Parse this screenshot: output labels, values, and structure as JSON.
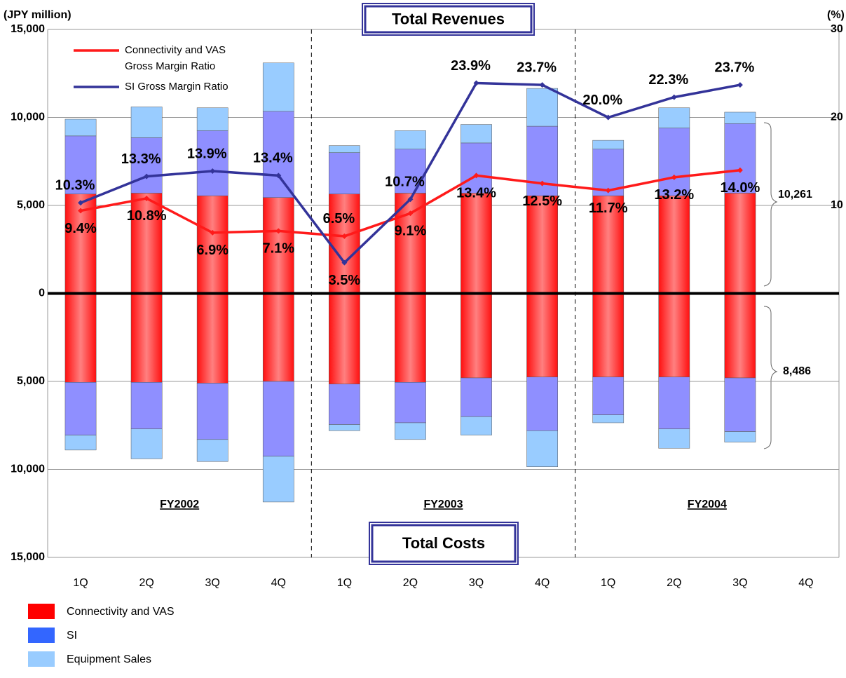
{
  "chart_data": {
    "type": "bar",
    "title": "Total Revenues",
    "cost_title": "Total Costs",
    "y_axis_label": "(JPY million)",
    "y2_axis_label": "(%)",
    "categories": [
      "1Q",
      "2Q",
      "3Q",
      "4Q",
      "1Q",
      "2Q",
      "3Q",
      "4Q",
      "1Q",
      "2Q",
      "3Q",
      "4Q"
    ],
    "groups": [
      "FY2002",
      "FY2003",
      "FY2004"
    ],
    "ylim": [
      -15000,
      15000
    ],
    "yticks": [
      {
        "value": -15000,
        "label": "15,000"
      },
      {
        "value": -10000,
        "label": "10,000"
      },
      {
        "value": -5000,
        "label": "5,000"
      },
      0,
      {
        "value": 5000,
        "label": "5,000"
      },
      {
        "value": 10000,
        "label": "10,000"
      },
      {
        "value": 15000,
        "label": "15,000"
      }
    ],
    "y2lim": [
      0,
      30
    ],
    "y2ticks": [
      10,
      20,
      30
    ],
    "grid": true,
    "series": [
      {
        "name": "Connectivity and VAS",
        "color": "#ff0000",
        "values": [
          5650,
          5700,
          5550,
          5450,
          5650,
          5700,
          5700,
          5550,
          5550,
          5550,
          5700,
          null
        ],
        "costs": [
          -5050,
          -5050,
          -5100,
          -5000,
          -5150,
          -5050,
          -4800,
          -4750,
          -4750,
          -4750,
          -4800,
          null
        ]
      },
      {
        "name": "SI",
        "color": "#3366ff",
        "fill": "#8f8fff",
        "values": [
          3300,
          3150,
          3700,
          4900,
          2350,
          2500,
          2850,
          3950,
          2650,
          3850,
          3950,
          null
        ],
        "costs": [
          -3000,
          -2650,
          -3200,
          -4250,
          -2300,
          -2300,
          -2200,
          -3050,
          -2150,
          -2950,
          -3050,
          null
        ]
      },
      {
        "name": "Equipment Sales",
        "color": "#99ccff",
        "values": [
          950,
          1750,
          1300,
          2750,
          400,
          1050,
          1050,
          2150,
          500,
          1150,
          650,
          null
        ],
        "costs": [
          -850,
          -1700,
          -1250,
          -2600,
          -350,
          -950,
          -1050,
          -2050,
          -450,
          -1100,
          -600,
          null
        ]
      }
    ],
    "lines": [
      {
        "name": "Connectivity and VAS Gross Margin Ratio",
        "color": "#ff1a1a",
        "axis": "y2",
        "values": [
          9.4,
          10.8,
          6.9,
          7.1,
          6.5,
          9.1,
          13.4,
          12.5,
          11.7,
          13.2,
          14.0,
          null
        ],
        "value_labels": [
          "9.4%",
          "10.8%",
          "6.9%",
          "7.1%",
          "6.5%",
          "9.1%",
          "13.4%",
          "12.5%",
          "11.7%",
          "13.2%",
          "14.0%",
          null
        ]
      },
      {
        "name": "SI Gross Margin Ratio",
        "color": "#333399",
        "axis": "y2",
        "values": [
          10.3,
          13.3,
          13.9,
          13.4,
          3.5,
          10.7,
          23.9,
          23.7,
          20.0,
          22.3,
          23.7,
          null
        ],
        "value_labels": [
          "10.3%",
          "13.3%",
          "13.9%",
          "13.4%",
          "3.5%",
          "10.7%",
          "23.9%",
          "23.7%",
          "20.0%",
          "22.3%",
          "23.7%",
          null
        ]
      }
    ],
    "annotations": [
      {
        "text": "10,261"
      },
      {
        "text": "8,486"
      }
    ]
  }
}
